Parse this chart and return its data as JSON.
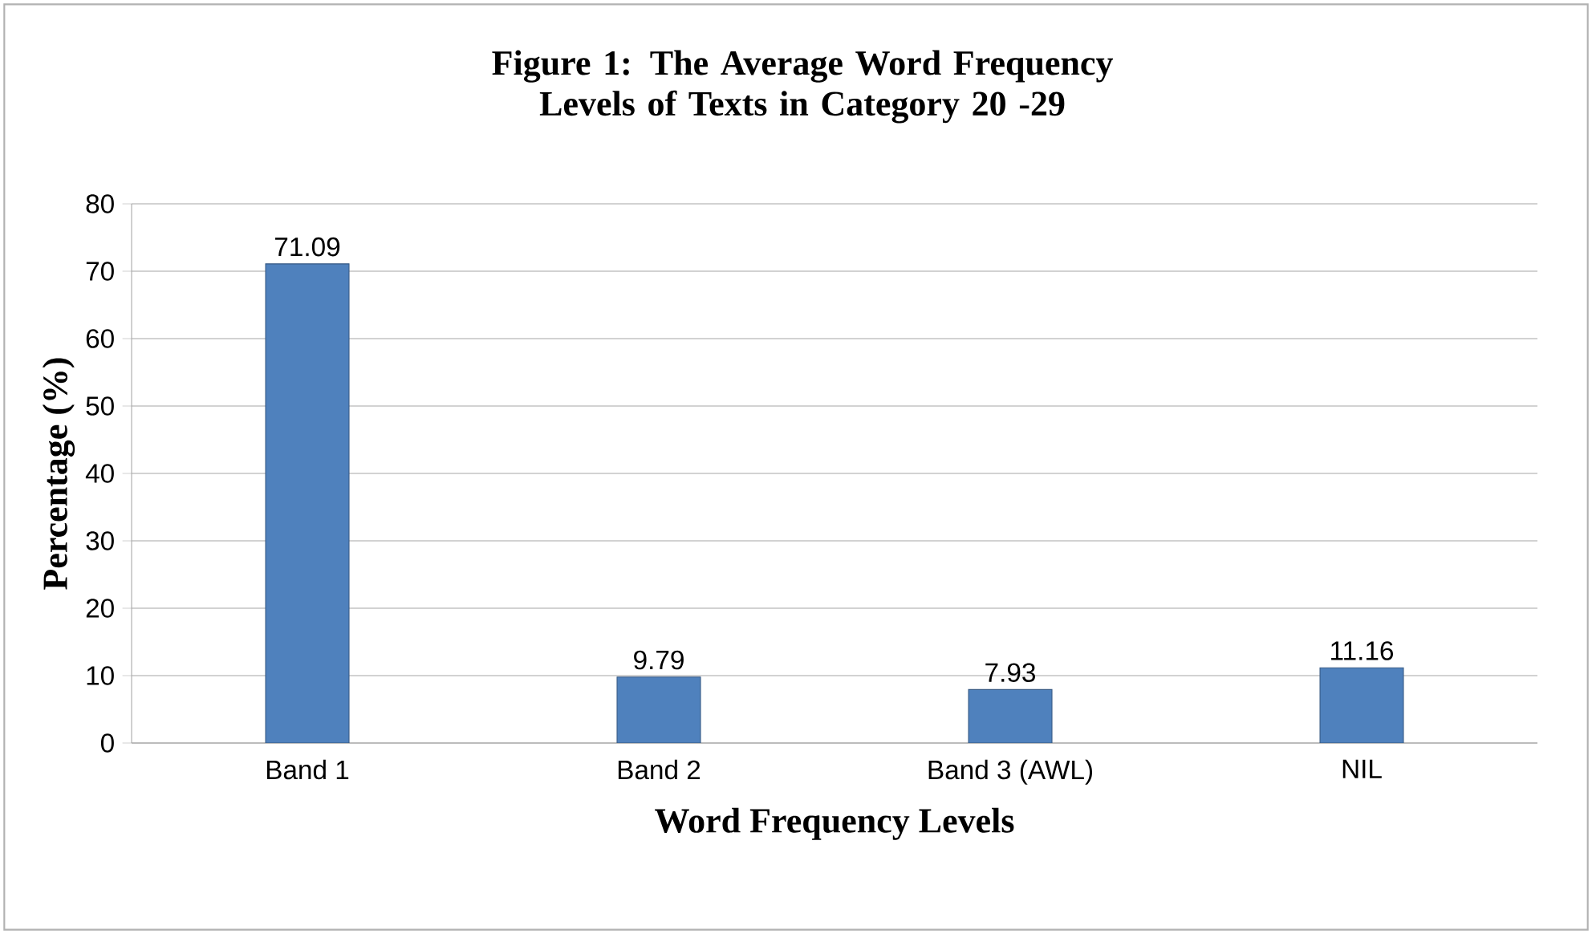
{
  "chart_data": {
    "type": "bar",
    "title": "Figure 1: The Average Word Frequency Levels of Texts in Category 20 -29",
    "xlabel": "Word Frequency Levels",
    "ylabel": "Percentage (%)",
    "categories": [
      "Band 1",
      "Band 2",
      "Band 3 (AWL)",
      "NIL"
    ],
    "values": [
      71.09,
      9.79,
      7.93,
      11.16
    ],
    "color": "#4f81bd",
    "ylim": [
      0,
      80
    ],
    "yticks": [
      0,
      10,
      20,
      30,
      40,
      50,
      60,
      70,
      80
    ],
    "grid": "y",
    "data_labels": true
  }
}
